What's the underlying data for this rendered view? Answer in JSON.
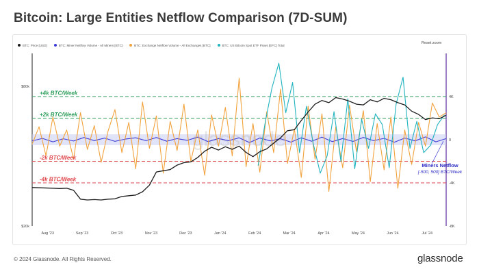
{
  "title": "Bitcoin: Large Entities Netflow Comparison (7D-SUM)",
  "reset_zoom": "Reset zoom",
  "footer": {
    "copyright": "© 2024 Glassnode. All Rights Reserved.",
    "brand": "glassnode"
  },
  "colors": {
    "price": "#1a1a1a",
    "miner": "#3b3bd6",
    "exchange": "#f2a23c",
    "etf": "#1fb3bf",
    "positive_band": "#2e9e5b",
    "negative_band": "#e0474c",
    "right_axis": "#5b2ca0"
  },
  "legend": [
    {
      "label": "BTC: Price [USD]",
      "color": "#1a1a1a"
    },
    {
      "label": "BTC: Miner Netflow Volume - All Miners [BTC]",
      "color": "#3b3bd6"
    },
    {
      "label": "BTC: Exchange Netflow Volume - All Exchanges [BTC]",
      "color": "#f2a23c"
    },
    {
      "label": "BTC: US Bitcoin Spot ETF Flows [EFC] Total",
      "color": "#1fb3bf"
    }
  ],
  "chart_data": {
    "type": "line",
    "title": "Bitcoin: Large Entities Netflow Comparison (7D-SUM)",
    "x_ticks": [
      "Aug '23",
      "Sep '23",
      "Oct '23",
      "Nov '23",
      "Dec '23",
      "Jan '24",
      "Feb '24",
      "Mar '24",
      "Apr '24",
      "May '24",
      "Jun '24",
      "Jul '24"
    ],
    "y_left": {
      "scale": "log",
      "range": [
        20000,
        80000
      ],
      "tick_labels": [
        "$80k",
        "$20k"
      ]
    },
    "y_right": {
      "range": [
        -8000,
        8000
      ],
      "tick_labels": [
        "4K",
        "0",
        "-4K",
        "-8K"
      ]
    },
    "reference_lines": [
      {
        "label": "+4k BTC/Week",
        "value": 4000,
        "color": "#2e9e5b"
      },
      {
        "label": "+2k BTC/Week",
        "value": 2000,
        "color": "#2e9e5b"
      },
      {
        "label": "-2k BTC/Week",
        "value": -2000,
        "color": "#e0474c"
      },
      {
        "label": "-4k BTC/Week",
        "value": -4000,
        "color": "#e0474c"
      }
    ],
    "annotation": {
      "label": "Miners Netflow",
      "sublabel": "[-500, 500] BTC/Week"
    },
    "grid": false,
    "legend_position": "top",
    "series": [
      {
        "name": "BTC: Price [USD]",
        "axis": "left",
        "color": "#1a1a1a",
        "points": [
          [
            0.0,
            29300
          ],
          [
            0.3,
            29200
          ],
          [
            0.6,
            29100
          ],
          [
            0.8,
            29000
          ],
          [
            1.0,
            29100
          ],
          [
            1.2,
            28500
          ],
          [
            1.4,
            26100
          ],
          [
            1.6,
            25900
          ],
          [
            1.8,
            26000
          ],
          [
            2.0,
            25900
          ],
          [
            2.2,
            26100
          ],
          [
            2.4,
            26200
          ],
          [
            2.6,
            26800
          ],
          [
            2.8,
            27000
          ],
          [
            3.0,
            27200
          ],
          [
            3.2,
            28100
          ],
          [
            3.4,
            30000
          ],
          [
            3.6,
            34200
          ],
          [
            3.8,
            34600
          ],
          [
            4.0,
            35000
          ],
          [
            4.2,
            36600
          ],
          [
            4.4,
            37500
          ],
          [
            4.6,
            37800
          ],
          [
            4.8,
            39500
          ],
          [
            5.0,
            42000
          ],
          [
            5.2,
            43700
          ],
          [
            5.4,
            42500
          ],
          [
            5.6,
            43900
          ],
          [
            5.8,
            42800
          ],
          [
            6.0,
            44200
          ],
          [
            6.2,
            41500
          ],
          [
            6.4,
            39800
          ],
          [
            6.6,
            41800
          ],
          [
            6.8,
            43000
          ],
          [
            7.0,
            45500
          ],
          [
            7.2,
            48000
          ],
          [
            7.4,
            51500
          ],
          [
            7.6,
            52000
          ],
          [
            7.8,
            57000
          ],
          [
            8.0,
            62000
          ],
          [
            8.2,
            67000
          ],
          [
            8.4,
            69500
          ],
          [
            8.6,
            68000
          ],
          [
            8.8,
            71500
          ],
          [
            9.0,
            70500
          ],
          [
            9.2,
            69000
          ],
          [
            9.4,
            67000
          ],
          [
            9.6,
            66500
          ],
          [
            9.8,
            70000
          ],
          [
            10.0,
            68500
          ],
          [
            10.2,
            71000
          ],
          [
            10.4,
            70000
          ],
          [
            10.6,
            68000
          ],
          [
            10.8,
            66500
          ],
          [
            11.0,
            62500
          ],
          [
            11.2,
            60500
          ],
          [
            11.4,
            57500
          ],
          [
            11.6,
            58500
          ],
          [
            11.8,
            58000
          ],
          [
            12.0,
            60000
          ]
        ]
      },
      {
        "name": "BTC: Miner Netflow Volume - All Miners [BTC]",
        "axis": "right",
        "color": "#3b3bd6",
        "points": [
          [
            0.0,
            -100
          ],
          [
            0.3,
            120
          ],
          [
            0.6,
            -200
          ],
          [
            0.9,
            90
          ],
          [
            1.2,
            -120
          ],
          [
            1.5,
            200
          ],
          [
            1.8,
            -80
          ],
          [
            2.1,
            150
          ],
          [
            2.4,
            -150
          ],
          [
            2.7,
            60
          ],
          [
            3.0,
            180
          ],
          [
            3.3,
            -90
          ],
          [
            3.6,
            200
          ],
          [
            3.9,
            -140
          ],
          [
            4.2,
            100
          ],
          [
            4.5,
            -60
          ],
          [
            4.8,
            240
          ],
          [
            5.1,
            -170
          ],
          [
            5.4,
            110
          ],
          [
            5.7,
            -90
          ],
          [
            6.0,
            180
          ],
          [
            6.3,
            -260
          ],
          [
            6.6,
            160
          ],
          [
            6.9,
            -110
          ],
          [
            7.2,
            90
          ],
          [
            7.5,
            -220
          ],
          [
            7.8,
            170
          ],
          [
            8.1,
            -140
          ],
          [
            8.4,
            240
          ],
          [
            8.7,
            -180
          ],
          [
            9.0,
            110
          ],
          [
            9.3,
            -160
          ],
          [
            9.6,
            210
          ],
          [
            9.9,
            -90
          ],
          [
            10.2,
            130
          ],
          [
            10.5,
            -230
          ],
          [
            10.8,
            150
          ],
          [
            11.1,
            -110
          ],
          [
            11.4,
            260
          ],
          [
            11.7,
            -200
          ],
          [
            12.0,
            100
          ]
        ]
      },
      {
        "name": "BTC: Exchange Netflow Volume - All Exchanges [BTC]",
        "axis": "right",
        "color": "#f2a23c",
        "points": [
          [
            0.0,
            -400
          ],
          [
            0.2,
            1200
          ],
          [
            0.4,
            -1500
          ],
          [
            0.6,
            2100
          ],
          [
            0.8,
            -600
          ],
          [
            1.0,
            900
          ],
          [
            1.2,
            -1800
          ],
          [
            1.4,
            2500
          ],
          [
            1.6,
            -900
          ],
          [
            1.8,
            1300
          ],
          [
            2.0,
            -2100
          ],
          [
            2.2,
            800
          ],
          [
            2.4,
            2800
          ],
          [
            2.6,
            -1200
          ],
          [
            2.8,
            1600
          ],
          [
            3.0,
            -2700
          ],
          [
            3.2,
            3500
          ],
          [
            3.4,
            -800
          ],
          [
            3.6,
            2200
          ],
          [
            3.8,
            -3100
          ],
          [
            4.0,
            1700
          ],
          [
            4.2,
            -1000
          ],
          [
            4.4,
            3300
          ],
          [
            4.6,
            -2000
          ],
          [
            4.8,
            900
          ],
          [
            5.0,
            -3300
          ],
          [
            5.2,
            2300
          ],
          [
            5.4,
            -600
          ],
          [
            5.6,
            3000
          ],
          [
            5.8,
            -1500
          ],
          [
            6.0,
            5700
          ],
          [
            6.2,
            -2500
          ],
          [
            6.4,
            1500
          ],
          [
            6.6,
            -3000
          ],
          [
            6.8,
            2600
          ],
          [
            7.0,
            -1200
          ],
          [
            7.2,
            4700
          ],
          [
            7.4,
            -2200
          ],
          [
            7.6,
            1000
          ],
          [
            7.8,
            -3500
          ],
          [
            8.0,
            3100
          ],
          [
            8.2,
            -1800
          ],
          [
            8.4,
            2400
          ],
          [
            8.6,
            -4800
          ],
          [
            8.8,
            1200
          ],
          [
            9.0,
            -2600
          ],
          [
            9.2,
            3200
          ],
          [
            9.4,
            -1100
          ],
          [
            9.6,
            2700
          ],
          [
            9.8,
            -3900
          ],
          [
            10.0,
            1500
          ],
          [
            10.2,
            -2800
          ],
          [
            10.4,
            2100
          ],
          [
            10.6,
            -4500
          ],
          [
            10.8,
            900
          ],
          [
            11.0,
            -2300
          ],
          [
            11.2,
            1600
          ],
          [
            11.4,
            -600
          ],
          [
            11.6,
            3400
          ],
          [
            11.8,
            2100
          ],
          [
            12.0,
            2500
          ]
        ]
      },
      {
        "name": "BTC: US Bitcoin Spot ETF Flows [EFC] Total",
        "axis": "right",
        "color": "#1fb3bf",
        "points": [
          [
            6.55,
            -2400
          ],
          [
            6.75,
            1500
          ],
          [
            6.95,
            4800
          ],
          [
            7.15,
            7100
          ],
          [
            7.35,
            2500
          ],
          [
            7.55,
            5300
          ],
          [
            7.75,
            -1200
          ],
          [
            7.95,
            3100
          ],
          [
            8.15,
            -400
          ],
          [
            8.35,
            -3100
          ],
          [
            8.55,
            -1500
          ],
          [
            8.75,
            2600
          ],
          [
            8.95,
            -2000
          ],
          [
            9.15,
            3800
          ],
          [
            9.35,
            -2700
          ],
          [
            9.55,
            1900
          ],
          [
            9.75,
            -800
          ],
          [
            9.95,
            2400
          ],
          [
            10.15,
            1400
          ],
          [
            10.35,
            -2600
          ],
          [
            10.55,
            3300
          ],
          [
            10.75,
            5800
          ],
          [
            10.95,
            -800
          ],
          [
            11.15,
            1700
          ],
          [
            11.35,
            -1200
          ],
          [
            11.55,
            -500
          ],
          [
            11.75,
            1400
          ],
          [
            11.95,
            2300
          ]
        ]
      }
    ]
  }
}
